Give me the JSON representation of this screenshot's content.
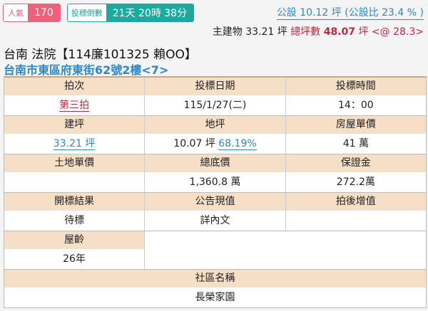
{
  "badges": {
    "popularity_label": "人氣",
    "popularity_value": "170",
    "countdown_label": "投標倒數",
    "countdown_value": "21天 20時 38分"
  },
  "public_area": "公設 10.12 坪 (公設比 23.4 % )",
  "main_building": {
    "prefix": "主建物 33.21 坪",
    "total_label": "總坪數",
    "total_value": "48.07",
    "unit": "坪",
    "unit_price": "<@ 28.3>"
  },
  "title": "台南 法院【114廉101325 賴OO】",
  "address": "台南市東區府東街62號2樓<7>",
  "colors": {
    "header_bg": "#f5dfc6",
    "link": "#2f86c8",
    "red": "#c8243f",
    "teal": "#1aaba0",
    "pink": "#f0607a"
  },
  "table": {
    "auction_round": {
      "label": "拍次",
      "value": "第三拍"
    },
    "bid_date": {
      "label": "投標日期",
      "value": "115/1/27(二)"
    },
    "bid_time": {
      "label": "投標時間",
      "value": "14：00"
    },
    "building_area": {
      "label": "建坪",
      "value": "33.21 坪"
    },
    "land_area": {
      "label": "地坪",
      "value": "10.07 坪",
      "ratio": "68.19%"
    },
    "house_unit_price": {
      "label": "房屋單價",
      "value": "41 萬"
    },
    "land_unit_price": {
      "label": "土地單價",
      "value": ""
    },
    "reserve_price": {
      "label": "總底價",
      "value": "1,360.8 萬"
    },
    "deposit": {
      "label": "保證金",
      "value": "272.2萬"
    },
    "result": {
      "label": "開標結果",
      "value": "待標"
    },
    "announced_value": {
      "label": "公告現值",
      "value": "詳內文"
    },
    "post_auction_increase": {
      "label": "拍後增值",
      "value": ""
    },
    "age": {
      "label": "屋齡",
      "value": "26年"
    },
    "community": {
      "label": "社區名稱",
      "value": "長榮家園"
    }
  }
}
